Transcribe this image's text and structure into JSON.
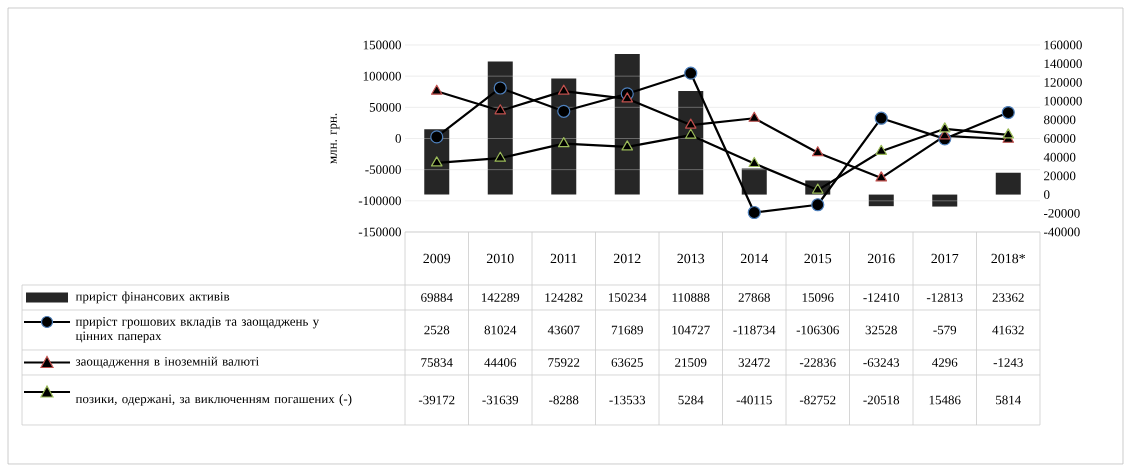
{
  "chart_data": {
    "type": "line",
    "ylabel": "млн. грн.",
    "categories": [
      "2009",
      "2010",
      "2011",
      "2012",
      "2013",
      "2014",
      "2015",
      "2016",
      "2017",
      "2018*"
    ],
    "series": [
      {
        "name": "приріст фінансових активів",
        "type": "bar",
        "axis": "y2",
        "color": "#262626",
        "values": [
          69884,
          142289,
          124282,
          150234,
          110888,
          27868,
          15096,
          -12410,
          -12813,
          23362
        ]
      },
      {
        "name": "приріст грошових вкладів та заощаджень у цінних паперах",
        "marker": "circle",
        "color": "#4f81bd",
        "values": [
          2528,
          81024,
          43607,
          71689,
          104727,
          -118734,
          -106306,
          32528,
          -579,
          41632
        ]
      },
      {
        "name": "заощадження в іноземній валюті",
        "marker": "triangle",
        "color": "#c0504d",
        "values": [
          75834,
          44406,
          75922,
          63625,
          21509,
          32472,
          -22836,
          -63243,
          4296,
          -1243
        ]
      },
      {
        "name": "позики, одержані, за виключенням погашених (-)",
        "marker": "triangle",
        "color": "#9bbb59",
        "values": [
          -39172,
          -31639,
          -8288,
          -13533,
          5284,
          -40115,
          -82752,
          -20518,
          15486,
          5814
        ]
      }
    ],
    "ylim": [
      -150000,
      150000
    ],
    "yticks": [
      -150000,
      -100000,
      -50000,
      0,
      50000,
      100000,
      150000
    ],
    "y2lim": [
      -40000,
      160000
    ],
    "y2ticks": [
      -40000,
      -20000,
      0,
      20000,
      40000,
      60000,
      80000,
      100000,
      120000,
      140000,
      160000
    ],
    "grid": "y",
    "legend": "bottom",
    "data_labels": true
  }
}
